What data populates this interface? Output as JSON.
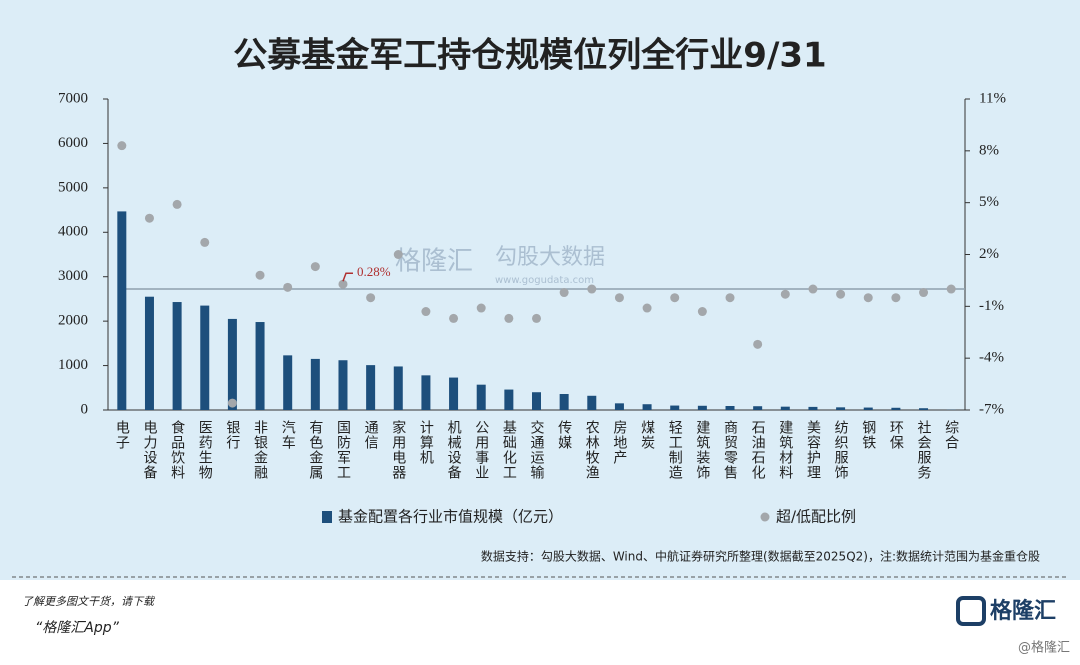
{
  "chart_data": {
    "type": "bar",
    "title": "公募基金军工持仓规模位列全行业9/31",
    "categories": [
      "电子",
      "电力设备",
      "食品饮料",
      "医药生物",
      "银行",
      "非银金融",
      "汽车",
      "有色金属",
      "国防军工",
      "通信",
      "家用电器",
      "计算机",
      "机械设备",
      "公用事业",
      "基础化工",
      "交通运输",
      "传媒",
      "农林牧渔",
      "房地产",
      "煤炭",
      "轻工制造",
      "建筑装饰",
      "商贸零售",
      "石油石化",
      "建筑材料",
      "美容护理",
      "纺织服饰",
      "钢铁",
      "环保",
      "社会服务",
      "综合"
    ],
    "series": [
      {
        "name": "基金配置各行业市值规模（亿元）",
        "type": "bar",
        "color": "#1d4f7c",
        "values": [
          4470,
          2550,
          2430,
          2350,
          2050,
          1980,
          1230,
          1150,
          1120,
          1010,
          980,
          780,
          730,
          570,
          460,
          400,
          360,
          320,
          150,
          130,
          100,
          95,
          90,
          85,
          75,
          70,
          60,
          55,
          50,
          40,
          5
        ]
      },
      {
        "name": "超/低配比例",
        "type": "scatter",
        "axis": "y2",
        "color": "#a3a7ab",
        "values": [
          8.3,
          4.1,
          4.9,
          2.7,
          -6.6,
          0.8,
          0.1,
          1.3,
          0.28,
          -0.5,
          2.0,
          -1.3,
          -1.7,
          -1.1,
          -1.7,
          -1.7,
          -0.2,
          0.0,
          -0.5,
          -1.1,
          -0.5,
          -1.3,
          -0.5,
          -3.2,
          -0.3,
          0.0,
          -0.3,
          -0.5,
          -0.5,
          -0.2,
          0.0
        ],
        "value_labels": [
          null,
          null,
          null,
          null,
          null,
          null,
          null,
          null,
          "0.28%",
          null,
          null,
          null,
          null,
          null,
          null,
          null,
          null,
          null,
          null,
          null,
          null,
          null,
          null,
          null,
          null,
          null,
          null,
          null,
          null,
          null,
          null
        ]
      }
    ],
    "ylim": [
      0,
      7000
    ],
    "yticks": [
      0,
      1000,
      2000,
      3000,
      4000,
      5000,
      6000,
      7000
    ],
    "y2lim": [
      -7,
      11
    ],
    "y2ticks": [
      {
        "value": 11,
        "label": "11%"
      },
      {
        "value": 8,
        "label": "8%"
      },
      {
        "value": 5,
        "label": "5%"
      },
      {
        "value": 2,
        "label": "2%"
      },
      {
        "value": -1,
        "label": "-1%"
      },
      {
        "value": -4,
        "label": "-4%"
      },
      {
        "value": -7,
        "label": "-7%"
      }
    ],
    "y2_reference": 0,
    "source": "数据支持：勾股大数据、Wind、中航证券研究所整理(数据截至2025Q2)，注:数据统计范围为基金重仓股"
  },
  "watermark": {
    "brand": "格隆汇",
    "data": "勾股大数据",
    "url": "www.gogudata.com"
  },
  "footer": {
    "line1": "了解更多图文干货，请下载",
    "line2": "“格隆汇App”",
    "logo": "格隆汇",
    "handle": "@格隆汇"
  }
}
